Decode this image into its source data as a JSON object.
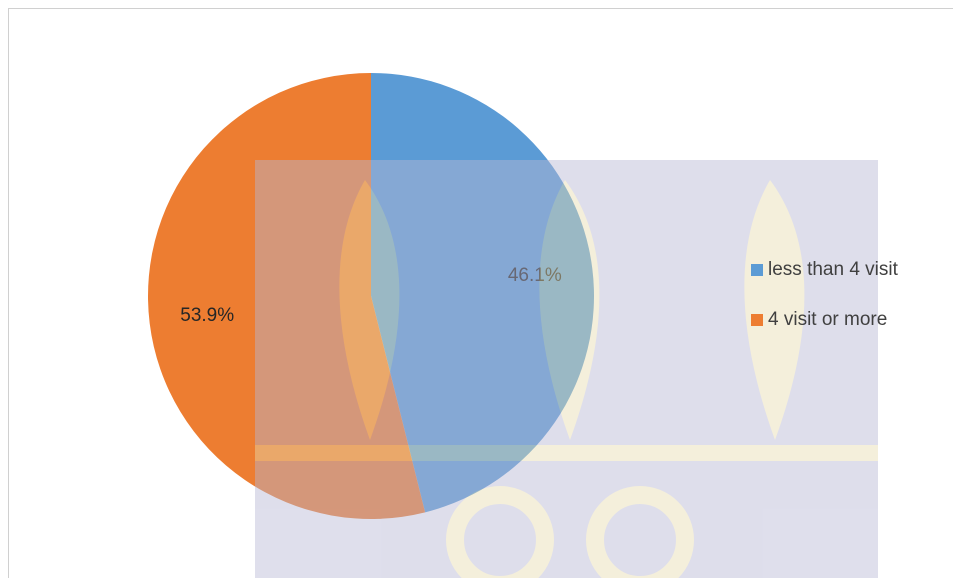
{
  "chart_data": {
    "type": "pie",
    "categories": [
      "less than 4 visit",
      "4 visit or more"
    ],
    "values": [
      46.1,
      53.9
    ],
    "value_labels": [
      "46.1%",
      "53.9%"
    ],
    "colors": [
      "#5b9bd5",
      "#ed7d31"
    ],
    "legend": "right"
  }
}
